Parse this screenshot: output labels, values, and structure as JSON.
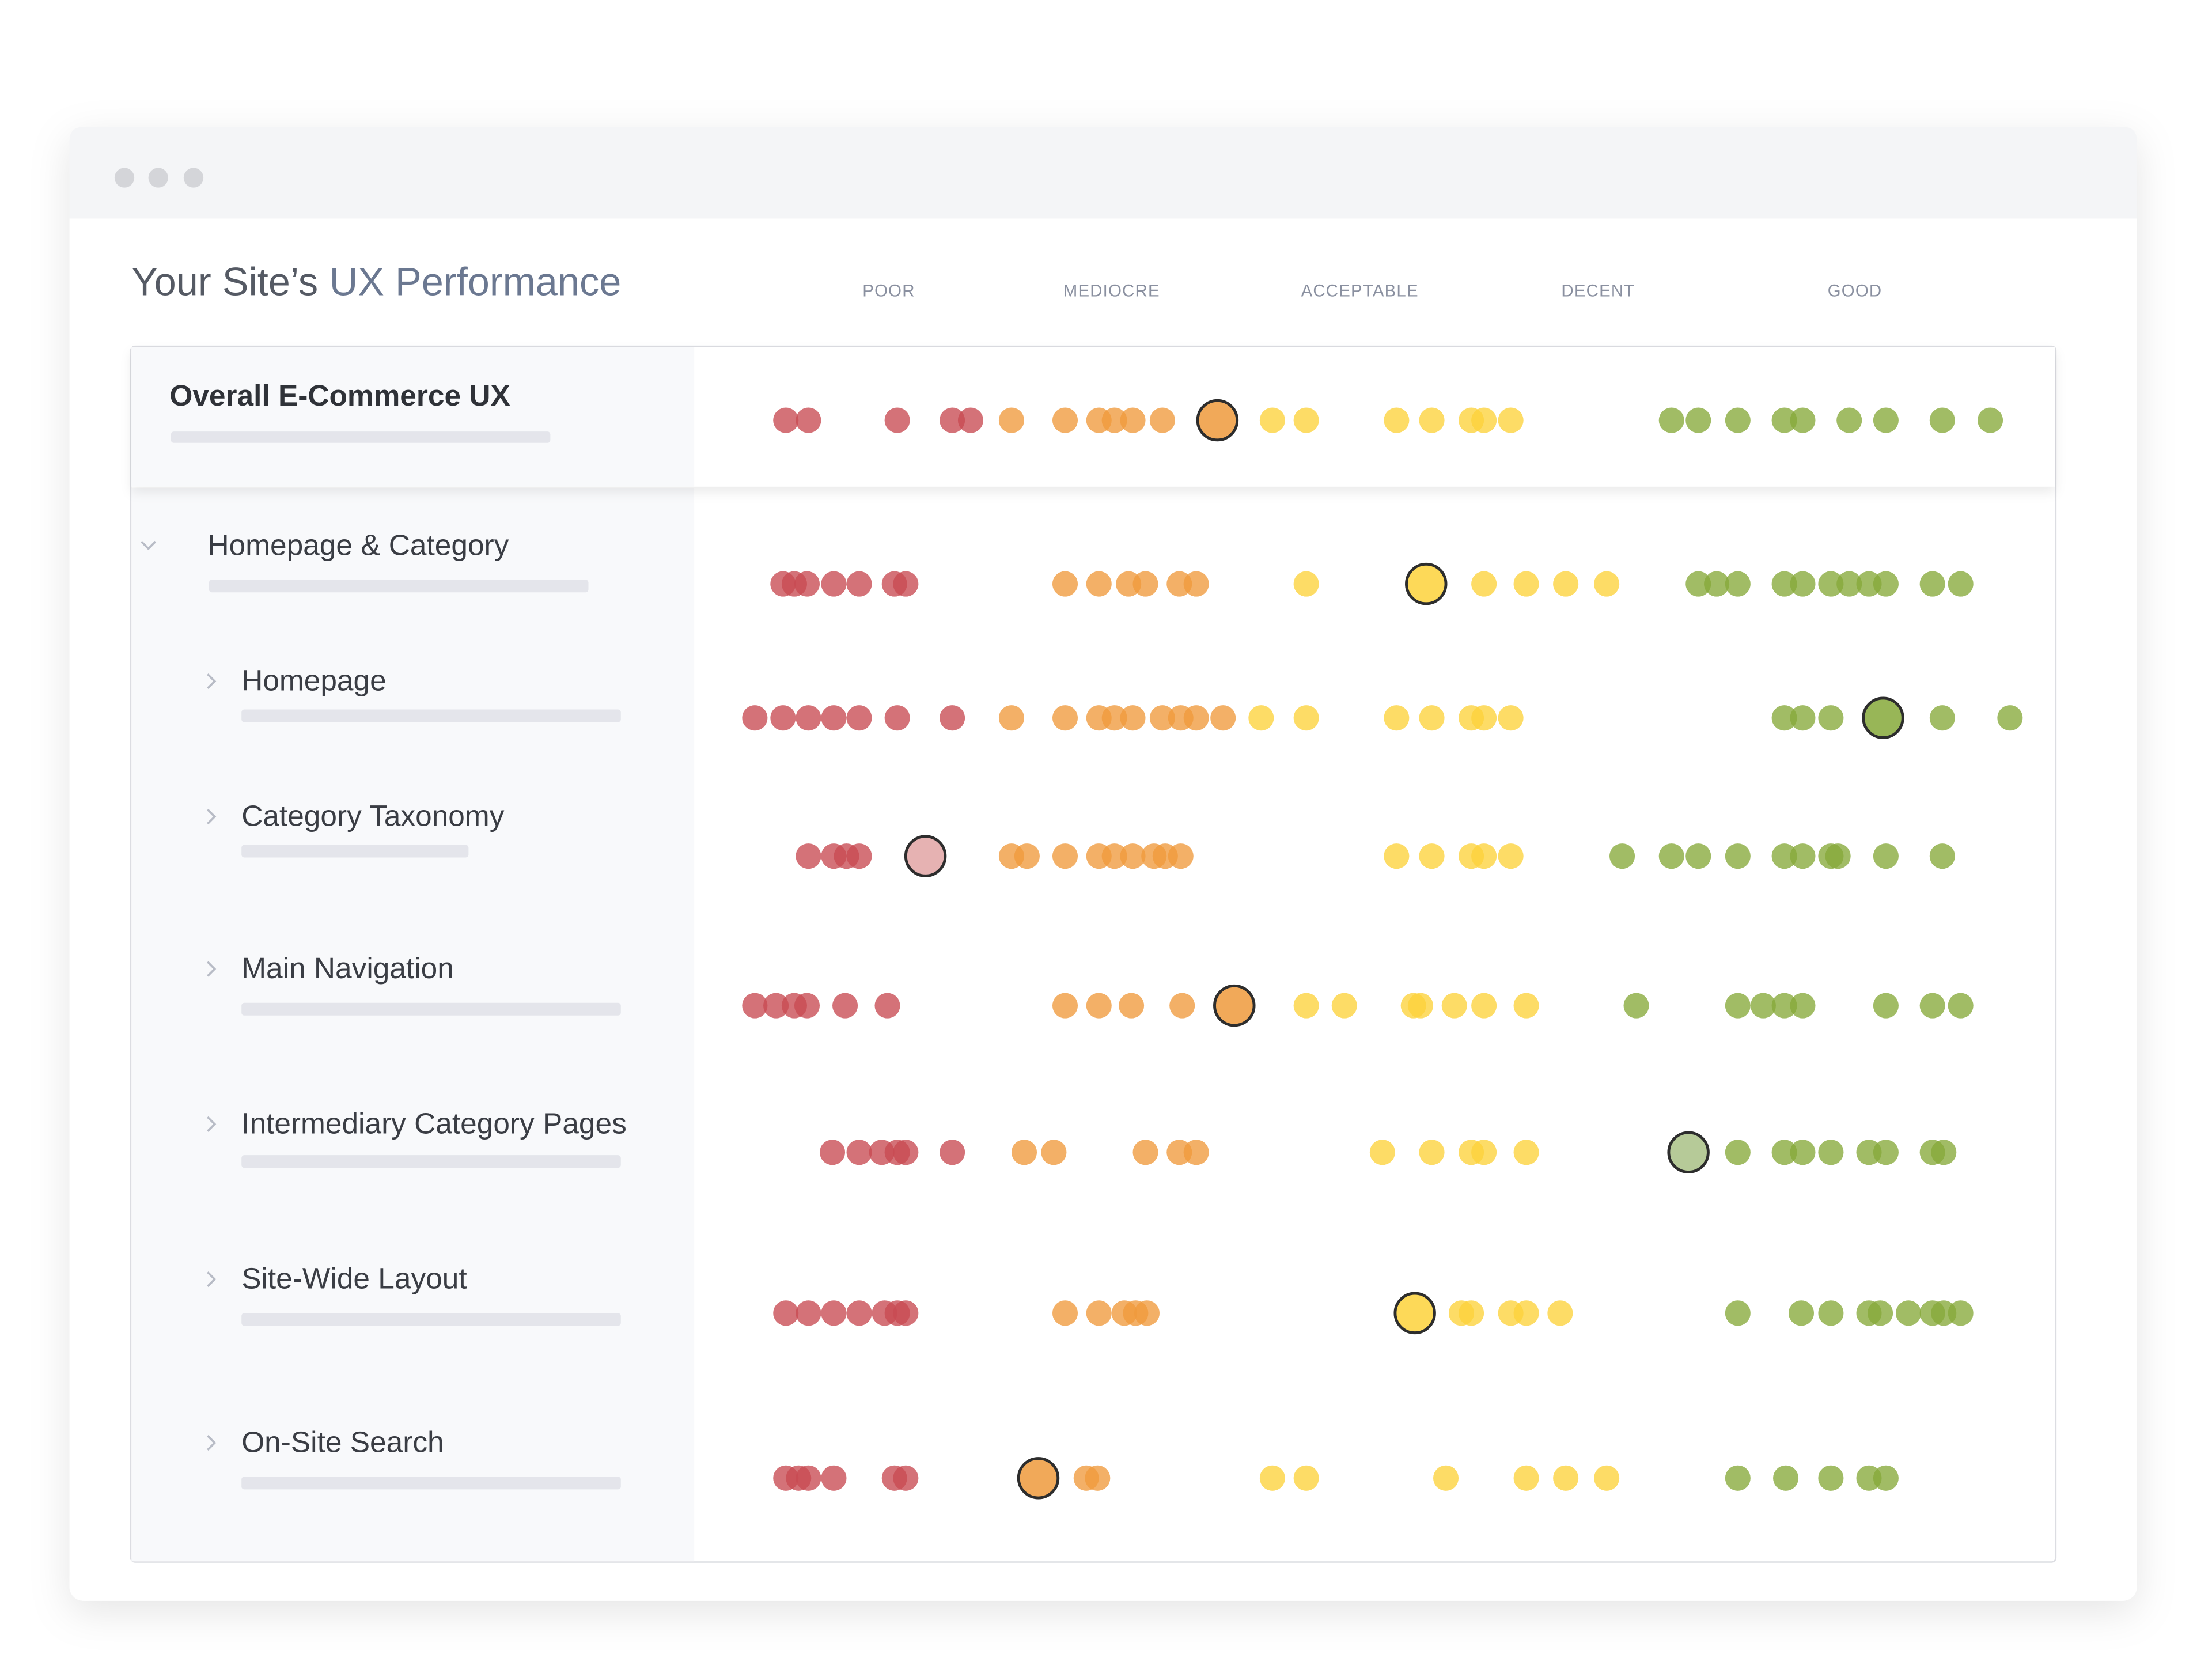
{
  "header": {
    "title_lead": "Your Site’s",
    "title_accent": "UX Performance"
  },
  "columns": [
    "POOR",
    "MEDIOCRE",
    "ACCEPTABLE",
    "DECENT",
    "GOOD"
  ],
  "overall": {
    "label": "Overall E-Commerce UX"
  },
  "rows": [
    {
      "label": "Homepage & Category"
    },
    {
      "label": "Homepage"
    },
    {
      "label": "Category Taxonomy"
    },
    {
      "label": "Main Navigation"
    },
    {
      "label": "Intermediary Category Pages"
    },
    {
      "label": "Site-Wide Layout"
    },
    {
      "label": "On-Site Search"
    }
  ]
}
